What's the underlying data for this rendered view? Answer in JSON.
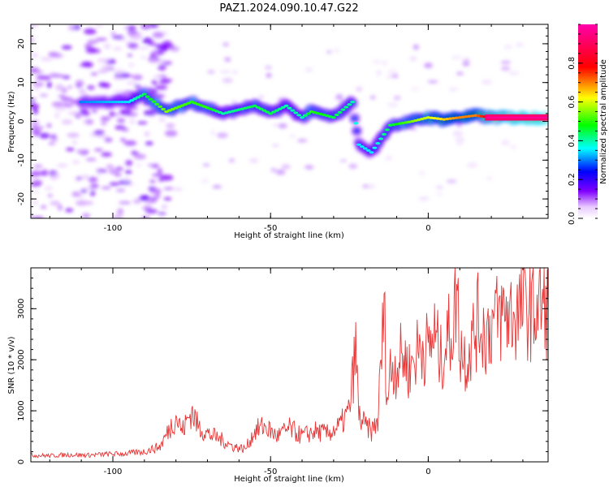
{
  "title": "PAZ1.2024.090.10.47.G22",
  "chart_data": [
    {
      "type": "heatmap",
      "xlabel": "Height of straight line (km)",
      "ylabel": "Frequency (Hz)",
      "xlim": [
        -126,
        38
      ],
      "ylim": [
        -25,
        25
      ],
      "xticks": [
        "-100",
        "-50",
        "0"
      ],
      "yticks": [
        "20",
        "10",
        "0",
        "-10",
        "-20"
      ],
      "colorbar": {
        "label": "Normalized spectral amplitude",
        "range": [
          0,
          1
        ],
        "ticks": [
          "0.0",
          "0.2",
          "0.4",
          "0.6",
          "0.8"
        ],
        "colors": [
          "#ffffff",
          "#7b00ff",
          "#0000ff",
          "#00ffff",
          "#00ff00",
          "#ffff00",
          "#ff0000",
          "#ff00aa"
        ]
      },
      "ridge": [
        {
          "x": -110,
          "y": 5,
          "a": 0.3
        },
        {
          "x": -95,
          "y": 5,
          "a": 0.35
        },
        {
          "x": -90,
          "y": 7,
          "a": 0.45
        },
        {
          "x": -83,
          "y": 2.5,
          "a": 0.55
        },
        {
          "x": -75,
          "y": 5,
          "a": 0.5
        },
        {
          "x": -70,
          "y": 3.5,
          "a": 0.5
        },
        {
          "x": -65,
          "y": 2,
          "a": 0.4
        },
        {
          "x": -55,
          "y": 4,
          "a": 0.45
        },
        {
          "x": -50,
          "y": 2,
          "a": 0.45
        },
        {
          "x": -45,
          "y": 4,
          "a": 0.4
        },
        {
          "x": -40,
          "y": 1,
          "a": 0.4
        },
        {
          "x": -37,
          "y": 2.5,
          "a": 0.5
        },
        {
          "x": -30,
          "y": 1,
          "a": 0.45
        },
        {
          "x": -24,
          "y": 5,
          "a": 0.4
        },
        {
          "x": -22,
          "y": -6,
          "a": 0.35
        },
        {
          "x": -18,
          "y": -8,
          "a": 0.35
        },
        {
          "x": -12,
          "y": -1,
          "a": 0.45
        },
        {
          "x": -5,
          "y": 0,
          "a": 0.55
        },
        {
          "x": 0,
          "y": 1,
          "a": 0.6
        },
        {
          "x": 5,
          "y": 0.5,
          "a": 0.65
        },
        {
          "x": 10,
          "y": 1,
          "a": 0.7
        },
        {
          "x": 15,
          "y": 1.5,
          "a": 0.7
        },
        {
          "x": 20,
          "y": 1,
          "a": 0.85
        },
        {
          "x": 28,
          "y": 1,
          "a": 0.95
        },
        {
          "x": 38,
          "y": 1,
          "a": 1.0
        }
      ]
    },
    {
      "type": "line",
      "xlabel": "Height of straight line (km)",
      "ylabel": "SNR (10 * v/v)",
      "xlim": [
        -126,
        38
      ],
      "ylim": [
        0,
        3800
      ],
      "xticks": [
        "-100",
        "-50",
        "0"
      ],
      "yticks": [
        "0",
        "1000",
        "2000",
        "3000"
      ],
      "color": "#e83535",
      "series": [
        {
          "x": [
            -126,
            -120,
            -114,
            -108,
            -102,
            -96,
            -90,
            -85,
            -82,
            -80,
            -78,
            -75,
            -73,
            -70,
            -66,
            -62,
            -58,
            -55,
            -52,
            -48,
            -44,
            -40,
            -36,
            -32,
            -28,
            -25,
            -23,
            -22,
            -20,
            -18,
            -16,
            -14,
            -13,
            -12,
            -10,
            -8,
            -6,
            -4,
            -2,
            0,
            2,
            4,
            6,
            8,
            9,
            10,
            12,
            14,
            16,
            18,
            20,
            22,
            24,
            26,
            28,
            30,
            32,
            34,
            36,
            38
          ],
          "values": [
            130,
            120,
            140,
            130,
            150,
            160,
            200,
            300,
            650,
            900,
            600,
            1000,
            700,
            550,
            450,
            300,
            250,
            600,
            700,
            500,
            650,
            500,
            600,
            550,
            700,
            1000,
            2200,
            900,
            700,
            600,
            800,
            3000,
            1200,
            1800,
            1900,
            2100,
            1800,
            2100,
            2300,
            2200,
            2500,
            2000,
            2400,
            2700,
            3500,
            2300,
            2000,
            2400,
            2800,
            2500,
            2700,
            2800,
            2900,
            2900,
            2900,
            3000,
            3000,
            3000,
            3050,
            3050
          ]
        }
      ]
    }
  ]
}
